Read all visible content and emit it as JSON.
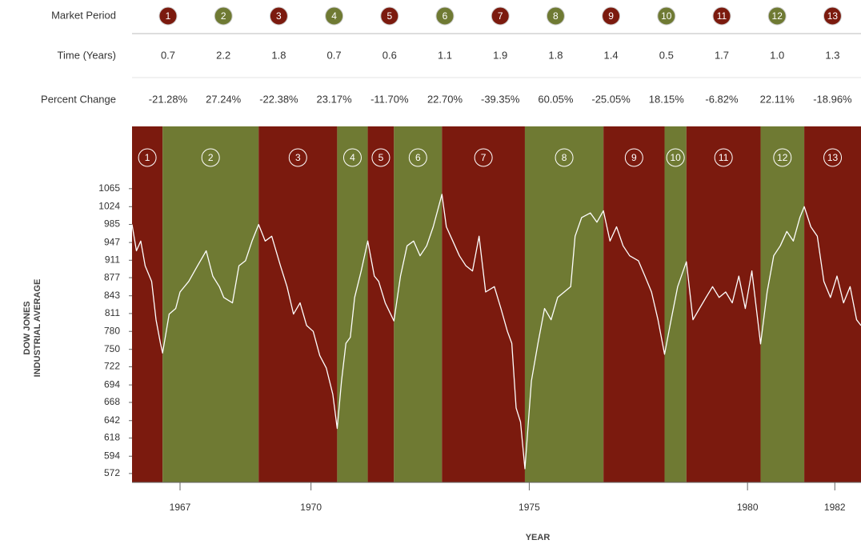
{
  "chart_data": {
    "type": "line",
    "row_labels": [
      "Market Period",
      "Time (Years)",
      "Percent Change"
    ],
    "periods": [
      "1",
      "2",
      "3",
      "4",
      "5",
      "6",
      "7",
      "8",
      "9",
      "10",
      "11",
      "12",
      "13"
    ],
    "period_colors": [
      "#7b1a0e",
      "#6f7a33",
      "#7b1a0e",
      "#6f7a33",
      "#7b1a0e",
      "#6f7a33",
      "#7b1a0e",
      "#6f7a33",
      "#7b1a0e",
      "#6f7a33",
      "#7b1a0e",
      "#6f7a33",
      "#7b1a0e"
    ],
    "durations": [
      0.7,
      2.2,
      1.8,
      0.7,
      0.6,
      1.1,
      1.9,
      1.8,
      1.4,
      0.5,
      1.7,
      1.0,
      1.3
    ],
    "duration_labels": [
      "0.7",
      "2.2",
      "1.8",
      "0.7",
      "0.6",
      "1.1",
      "1.9",
      "1.8",
      "1.4",
      "0.5",
      "1.7",
      "1.0",
      "1.3"
    ],
    "percent_changes": [
      -21.28,
      27.24,
      -22.38,
      23.17,
      -11.7,
      22.7,
      -39.35,
      60.05,
      -25.05,
      18.15,
      -6.82,
      22.11,
      -18.96
    ],
    "percent_labels": [
      "-21.28%",
      "27.24%",
      "-22.38%",
      "23.17%",
      "-11.70%",
      "22.70%",
      "-39.35%",
      "60.05%",
      "-25.05%",
      "18.15%",
      "-6.82%",
      "22.11%",
      "-18.96%"
    ],
    "xlabel": "YEAR",
    "ylabel": [
      "DOW JONES",
      "INDUSTRIAL AVERAGE"
    ],
    "color": "#ffffff",
    "log_y": true,
    "xlim": [
      1965.9,
      1982.6
    ],
    "xticks": [
      1967,
      1970,
      1975,
      1980,
      1982
    ],
    "ylim": [
      561,
      1220
    ],
    "yticks": [
      572,
      594,
      618,
      642,
      668,
      694,
      722,
      750,
      780,
      811,
      843,
      877,
      911,
      947,
      985,
      1024,
      1065
    ],
    "x": [
      1965.9,
      1966.0,
      1966.1,
      1966.2,
      1966.35,
      1966.45,
      1966.55,
      1966.6,
      1966.75,
      1966.9,
      1967.0,
      1967.2,
      1967.4,
      1967.6,
      1967.75,
      1967.9,
      1968.0,
      1968.2,
      1968.35,
      1968.5,
      1968.65,
      1968.8,
      1968.95,
      1969.1,
      1969.3,
      1969.45,
      1969.6,
      1969.75,
      1969.9,
      1970.05,
      1970.2,
      1970.35,
      1970.5,
      1970.6,
      1970.7,
      1970.8,
      1970.9,
      1971.0,
      1971.15,
      1971.3,
      1971.45,
      1971.55,
      1971.7,
      1971.9,
      1972.05,
      1972.2,
      1972.35,
      1972.5,
      1972.65,
      1972.8,
      1973.0,
      1973.1,
      1973.25,
      1973.4,
      1973.55,
      1973.7,
      1973.85,
      1974.0,
      1974.2,
      1974.35,
      1974.5,
      1974.6,
      1974.7,
      1974.8,
      1974.9,
      1975.05,
      1975.2,
      1975.35,
      1975.5,
      1975.65,
      1975.8,
      1975.95,
      1976.05,
      1976.2,
      1976.4,
      1976.55,
      1976.7,
      1976.85,
      1977.0,
      1977.15,
      1977.3,
      1977.5,
      1977.65,
      1977.8,
      1977.95,
      1978.1,
      1978.25,
      1978.4,
      1978.6,
      1978.75,
      1978.9,
      1979.05,
      1979.2,
      1979.35,
      1979.5,
      1979.65,
      1979.8,
      1979.95,
      1980.1,
      1980.3,
      1980.45,
      1980.6,
      1980.75,
      1980.9,
      1981.05,
      1981.2,
      1981.3,
      1981.45,
      1981.6,
      1981.75,
      1981.9,
      1982.05,
      1982.2,
      1982.35,
      1982.5,
      1982.6
    ],
    "values": [
      985,
      930,
      950,
      900,
      870,
      800,
      760,
      744,
      810,
      820,
      850,
      870,
      900,
      930,
      880,
      860,
      840,
      830,
      900,
      910,
      950,
      985,
      950,
      960,
      900,
      860,
      810,
      830,
      790,
      780,
      740,
      720,
      680,
      631,
      700,
      760,
      770,
      840,
      890,
      950,
      880,
      870,
      830,
      798,
      880,
      940,
      950,
      920,
      940,
      980,
      1052,
      980,
      950,
      920,
      900,
      890,
      960,
      850,
      860,
      820,
      780,
      760,
      660,
      640,
      578,
      700,
      760,
      820,
      800,
      840,
      850,
      860,
      960,
      1000,
      1010,
      990,
      1015,
      950,
      980,
      940,
      920,
      910,
      880,
      850,
      800,
      742,
      800,
      860,
      908,
      800,
      820,
      840,
      860,
      840,
      850,
      830,
      880,
      820,
      890,
      759,
      850,
      920,
      940,
      970,
      950,
      1000,
      1024,
      980,
      960,
      870,
      840,
      880,
      830,
      860,
      800,
      790
    ]
  }
}
